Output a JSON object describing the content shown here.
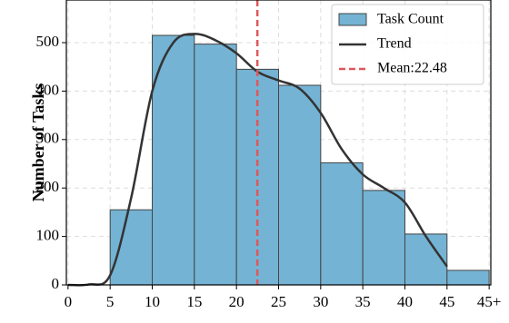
{
  "chart_data": {
    "type": "histogram",
    "ylabel": "Number of Tasks",
    "bins": [
      5,
      10,
      15,
      20,
      25,
      30,
      35,
      40,
      45,
      50
    ],
    "series": [
      {
        "name": "Task Count",
        "color": "#74b3d3",
        "values": [
          155,
          515,
          497,
          445,
          412,
          252,
          195,
          105,
          30
        ]
      }
    ],
    "trend": {
      "name": "Trend",
      "color": "#333333",
      "x": [
        0,
        2.5,
        5,
        7.5,
        10,
        12.5,
        15,
        17.5,
        20,
        22.5,
        25,
        27.5,
        30,
        32.5,
        35,
        37.5,
        40,
        42.5,
        45
      ],
      "values": [
        0,
        1,
        20,
        180,
        400,
        500,
        518,
        505,
        478,
        440,
        422,
        405,
        355,
        280,
        228,
        200,
        170,
        100,
        38
      ]
    },
    "mean": {
      "label": "Mean:22.48",
      "value": 22.48,
      "color": "#e0575a"
    },
    "xlim": [
      -0.2,
      50.2
    ],
    "ylim": [
      0,
      588
    ],
    "xticks": [
      0,
      5,
      10,
      15,
      20,
      25,
      30,
      35,
      40,
      45,
      {
        "value": 50,
        "label": "45+"
      }
    ],
    "yticks": [
      0,
      100,
      200,
      300,
      400,
      500
    ],
    "grid": true,
    "legend": "upper right"
  }
}
